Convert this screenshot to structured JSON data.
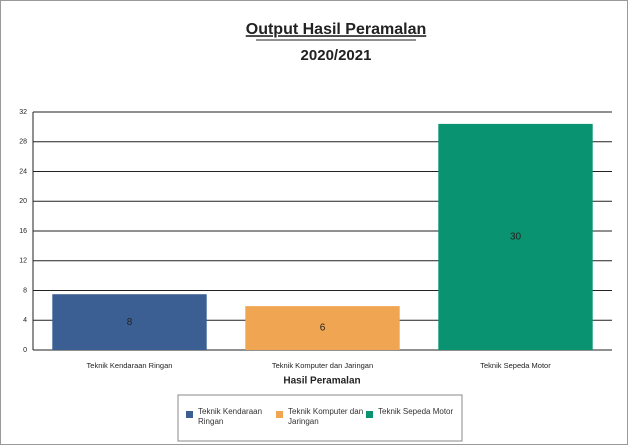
{
  "chart_data": {
    "type": "bar",
    "title": "Output Hasil Peramalan",
    "subtitle": "2020/2021",
    "x_label": "Hasil Peramalan",
    "categories": [
      "Teknik Kendaraan Ringan",
      "Teknik Komputer dan Jaringan",
      "Teknik Sepeda Motor"
    ],
    "values": [
      7.5,
      5.9,
      30.4
    ],
    "value_labels": [
      "8",
      "6",
      "30"
    ],
    "colors": [
      "#3b5f93",
      "#f0a553",
      "#0a9371"
    ],
    "ylim": [
      0,
      32
    ],
    "yticks": [
      0,
      4,
      8,
      12,
      16,
      20,
      24,
      28,
      32
    ],
    "grid": true,
    "legend": "bottom"
  }
}
